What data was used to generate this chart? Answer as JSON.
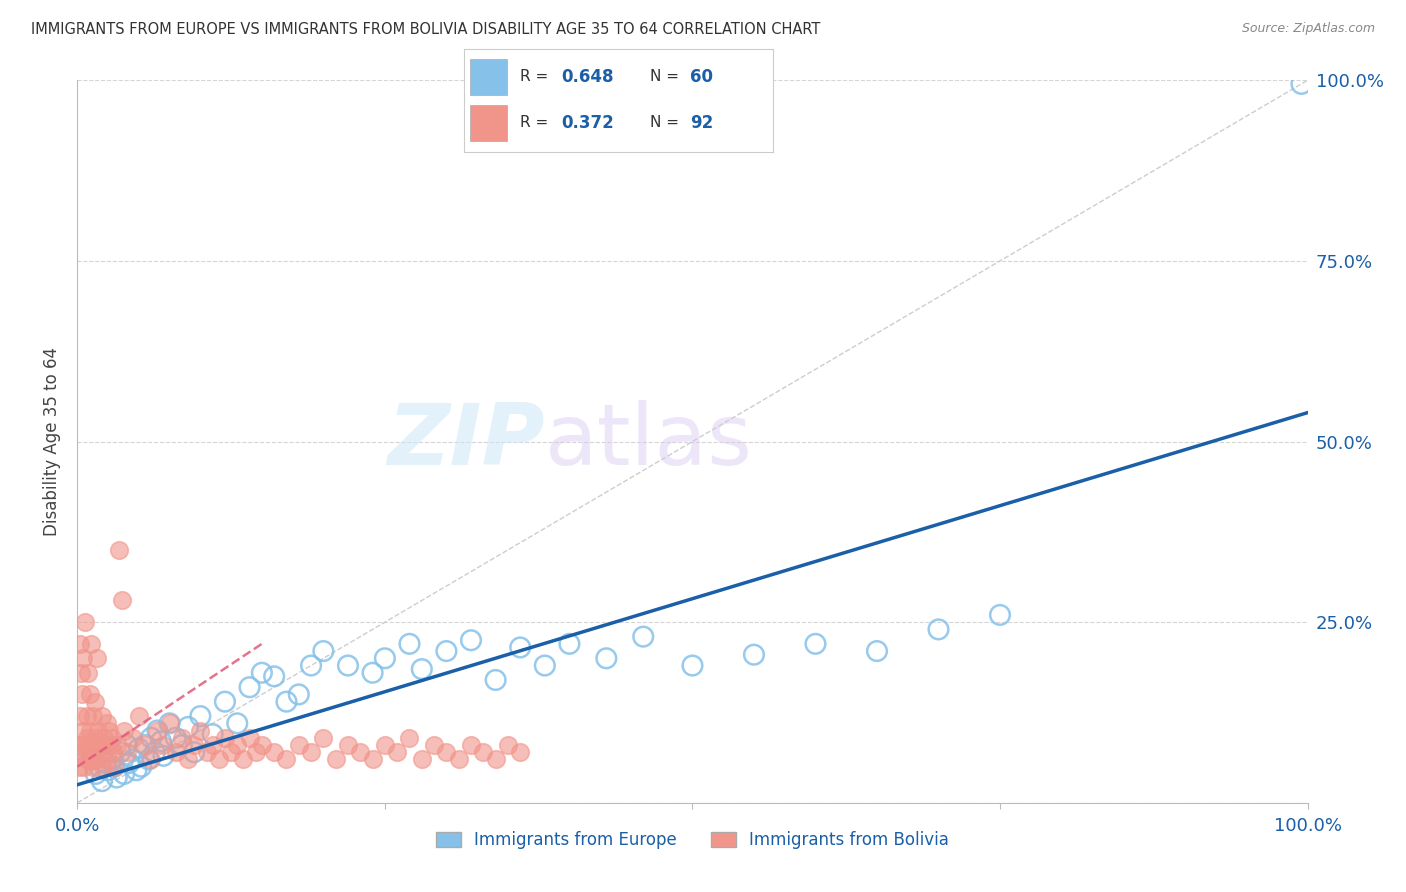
{
  "title": "IMMIGRANTS FROM EUROPE VS IMMIGRANTS FROM BOLIVIA DISABILITY AGE 35 TO 64 CORRELATION CHART",
  "source": "Source: ZipAtlas.com",
  "ylabel": "Disability Age 35 to 64",
  "watermark_zip": "ZIP",
  "watermark_atlas": "atlas",
  "legend_europe": "Immigrants from Europe",
  "legend_bolivia": "Immigrants from Bolivia",
  "R_europe": "0.648",
  "N_europe": "60",
  "R_bolivia": "0.372",
  "N_bolivia": "92",
  "color_europe": "#85c1e9",
  "color_bolivia": "#f1948a",
  "color_europe_dark": "#85c1e9",
  "color_bolivia_dark": "#f1948a",
  "color_europe_line": "#1a5fa8",
  "color_bolivia_line": "#e05a7a",
  "color_diagonal": "#c8c8c8",
  "background_color": "#ffffff",
  "grid_color": "#d5d5d5",
  "title_color": "#333333",
  "axis_label_color": "#1a5fa8",
  "eu_x": [
    1.2,
    1.5,
    1.8,
    2.0,
    2.3,
    2.5,
    2.8,
    3.0,
    3.2,
    3.5,
    3.8,
    4.0,
    4.2,
    4.5,
    4.8,
    5.0,
    5.2,
    5.5,
    5.8,
    6.0,
    6.3,
    6.5,
    6.8,
    7.0,
    7.5,
    8.0,
    8.5,
    9.0,
    9.5,
    10.0,
    11.0,
    12.0,
    13.0,
    14.0,
    15.0,
    16.0,
    17.0,
    18.0,
    19.0,
    20.0,
    22.0,
    24.0,
    25.0,
    27.0,
    28.0,
    30.0,
    32.0,
    34.0,
    36.0,
    38.0,
    40.0,
    43.0,
    46.0,
    50.0,
    55.0,
    60.0,
    65.0,
    70.0,
    75.0,
    99.5
  ],
  "eu_y": [
    6.0,
    4.0,
    5.0,
    3.0,
    5.5,
    4.5,
    6.0,
    5.0,
    3.5,
    7.0,
    4.0,
    8.0,
    5.5,
    6.0,
    4.5,
    7.5,
    5.0,
    8.0,
    6.0,
    9.0,
    7.0,
    10.0,
    8.5,
    6.5,
    11.0,
    9.0,
    8.0,
    10.5,
    7.0,
    12.0,
    9.5,
    14.0,
    11.0,
    16.0,
    18.0,
    17.5,
    14.0,
    15.0,
    19.0,
    21.0,
    19.0,
    18.0,
    20.0,
    22.0,
    18.5,
    21.0,
    22.5,
    17.0,
    21.5,
    19.0,
    22.0,
    20.0,
    23.0,
    19.0,
    20.5,
    22.0,
    21.0,
    24.0,
    26.0,
    99.5
  ],
  "bo_x": [
    0.1,
    0.15,
    0.2,
    0.25,
    0.3,
    0.35,
    0.4,
    0.45,
    0.5,
    0.55,
    0.6,
    0.65,
    0.7,
    0.75,
    0.8,
    0.85,
    0.9,
    0.95,
    1.0,
    1.05,
    1.1,
    1.15,
    1.2,
    1.25,
    1.3,
    1.35,
    1.4,
    1.45,
    1.5,
    1.6,
    1.7,
    1.8,
    1.9,
    2.0,
    2.1,
    2.2,
    2.3,
    2.4,
    2.5,
    2.6,
    2.7,
    2.8,
    2.9,
    3.0,
    3.2,
    3.4,
    3.6,
    3.8,
    4.0,
    4.5,
    5.0,
    5.5,
    6.0,
    6.5,
    7.0,
    7.5,
    8.0,
    8.5,
    9.0,
    9.5,
    10.0,
    10.5,
    11.0,
    11.5,
    12.0,
    12.5,
    13.0,
    13.5,
    14.0,
    14.5,
    15.0,
    16.0,
    17.0,
    18.0,
    19.0,
    20.0,
    21.0,
    22.0,
    23.0,
    24.0,
    25.0,
    26.0,
    27.0,
    28.0,
    29.0,
    30.0,
    31.0,
    32.0,
    33.0,
    34.0,
    35.0,
    36.0
  ],
  "bo_y": [
    5.0,
    8.0,
    22.0,
    12.0,
    18.0,
    7.0,
    15.0,
    20.0,
    10.0,
    5.0,
    8.0,
    25.0,
    6.0,
    12.0,
    9.0,
    7.0,
    18.0,
    8.0,
    15.0,
    10.0,
    6.0,
    22.0,
    8.0,
    5.0,
    12.0,
    7.0,
    9.0,
    14.0,
    6.0,
    20.0,
    10.0,
    8.0,
    7.0,
    12.0,
    5.0,
    9.0,
    8.0,
    11.0,
    6.0,
    10.0,
    8.0,
    9.0,
    7.0,
    5.0,
    8.0,
    35.0,
    28.0,
    10.0,
    7.0,
    9.0,
    12.0,
    8.0,
    6.0,
    10.0,
    8.0,
    11.0,
    7.0,
    9.0,
    6.0,
    8.0,
    10.0,
    7.0,
    8.0,
    6.0,
    9.0,
    7.0,
    8.0,
    6.0,
    9.0,
    7.0,
    8.0,
    7.0,
    6.0,
    8.0,
    7.0,
    9.0,
    6.0,
    8.0,
    7.0,
    6.0,
    8.0,
    7.0,
    9.0,
    6.0,
    8.0,
    7.0,
    6.0,
    8.0,
    7.0,
    6.0,
    8.0,
    7.0
  ],
  "eu_line_x": [
    0,
    100
  ],
  "eu_line_y": [
    2.5,
    54.0
  ],
  "bo_line_x": [
    0,
    15
  ],
  "bo_line_y": [
    5.0,
    22.0
  ],
  "xlim": [
    0,
    100
  ],
  "ylim": [
    0,
    100
  ],
  "ytick_positions": [
    0,
    25,
    50,
    75,
    100
  ],
  "ytick_labels_right": [
    "",
    "25.0%",
    "50.0%",
    "75.0%",
    "100.0%"
  ],
  "xtick_positions": [
    0,
    25,
    50,
    75,
    100
  ],
  "xtick_labels": [
    "0.0%",
    "",
    "",
    "",
    "100.0%"
  ]
}
